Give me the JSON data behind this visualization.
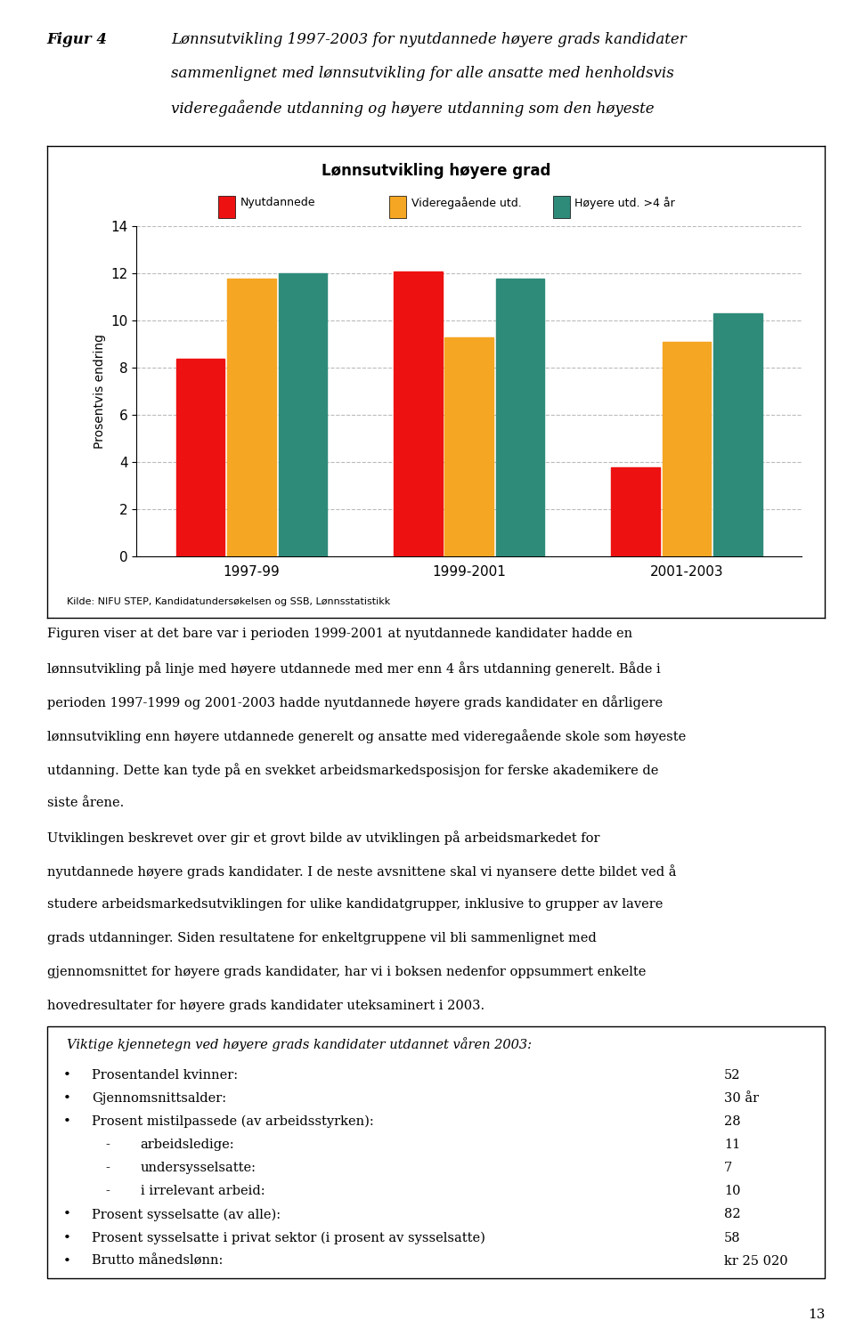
{
  "fig_label": "Figur 4",
  "fig_caption_line1": "Lønnsutvikling 1997-2003 for nyutdannede høyere grads kandidater",
  "fig_caption_line2": "sammenlignet med lønnsutvikling for alle ansatte med henholdsvis",
  "fig_caption_line3": "videregaående utdanning og høyere utdanning som den høyeste",
  "chart_title": "Lønnsutvikling høyere grad",
  "legend_labels": [
    "Nyutdannede",
    "Videregaående utd.",
    "Høyere utd. >4 år"
  ],
  "legend_colors": [
    "#EE1111",
    "#F5A623",
    "#2E8B7A"
  ],
  "categories": [
    "1997-99",
    "1999-2001",
    "2001-2003"
  ],
  "nyutdannede": [
    8.4,
    12.1,
    3.8
  ],
  "videregaende": [
    11.8,
    9.3,
    9.1
  ],
  "hoyere": [
    12.0,
    11.8,
    10.3
  ],
  "bar_colors": [
    "#EE1111",
    "#F5A623",
    "#2E8B7A"
  ],
  "ylabel": "Prosentvis endring",
  "ylim": [
    0,
    14
  ],
  "yticks": [
    0,
    2,
    4,
    6,
    8,
    10,
    12,
    14
  ],
  "source_text": "Kilde: NIFU STEP, Kandidatundersøkelsen og SSB, Lønnsstatistikk",
  "body_text1_lines": [
    "Figuren viser at det bare var i perioden 1999-2001 at nyutdannede kandidater hadde en",
    "lønnsutvikling på linje med høyere utdannede med mer enn 4 års utdanning generelt. Både i",
    "perioden 1997-1999 og 2001-2003 hadde nyutdannede høyere grads kandidater en dårligere",
    "lønnsutvikling enn høyere utdannede generelt og ansatte med videregaående skole som høyeste",
    "utdanning. Dette kan tyde på en svekket arbeidsmarkedsposisjon for ferske akademikere de",
    "siste årene."
  ],
  "body_text2_lines": [
    "Utviklingen beskrevet over gir et grovt bilde av utviklingen på arbeidsmarkedet for",
    "nyutdannede høyere grads kandidater. I de neste avsnittene skal vi nyansere dette bildet ved å",
    "studere arbeidsmarkedsutviklingen for ulike kandidatgrupper, inklusive to grupper av lavere",
    "grads utdanninger. Siden resultatene for enkeltgruppene vil bli sammenlignet med",
    "gjennomsnittet for høyere grads kandidater, har vi i boksen nedenfor oppsummert enkelte",
    "hovedresultater for høyere grads kandidater uteksaminert i 2003."
  ],
  "box_title": "Viktige kjennetegn ved høyere grads kandidater utdannet våren 2003:",
  "box_items": [
    {
      "bullet": true,
      "indent": false,
      "text": "Prosentandel kvinner:",
      "value": "52"
    },
    {
      "bullet": true,
      "indent": false,
      "text": "Gjennomsnittsalder:",
      "value": "30 år"
    },
    {
      "bullet": true,
      "indent": false,
      "text": "Prosent mistilpassede (av arbeidsstyrken):",
      "value": "28"
    },
    {
      "bullet": false,
      "indent": true,
      "text": "arbeidsledige:",
      "value": "11"
    },
    {
      "bullet": false,
      "indent": true,
      "text": "undersysselsatte:",
      "value": "7"
    },
    {
      "bullet": false,
      "indent": true,
      "text": "i irrelevant arbeid:",
      "value": "10"
    },
    {
      "bullet": true,
      "indent": false,
      "text": "Prosent sysselsatte (av alle):",
      "value": "82"
    },
    {
      "bullet": true,
      "indent": false,
      "text": "Prosent sysselsatte i privat sektor (i prosent av sysselsatte)",
      "value": "58"
    },
    {
      "bullet": true,
      "indent": false,
      "text": "Brutto månedslønn:",
      "value": "kr 25 020"
    }
  ],
  "page_number": "13"
}
